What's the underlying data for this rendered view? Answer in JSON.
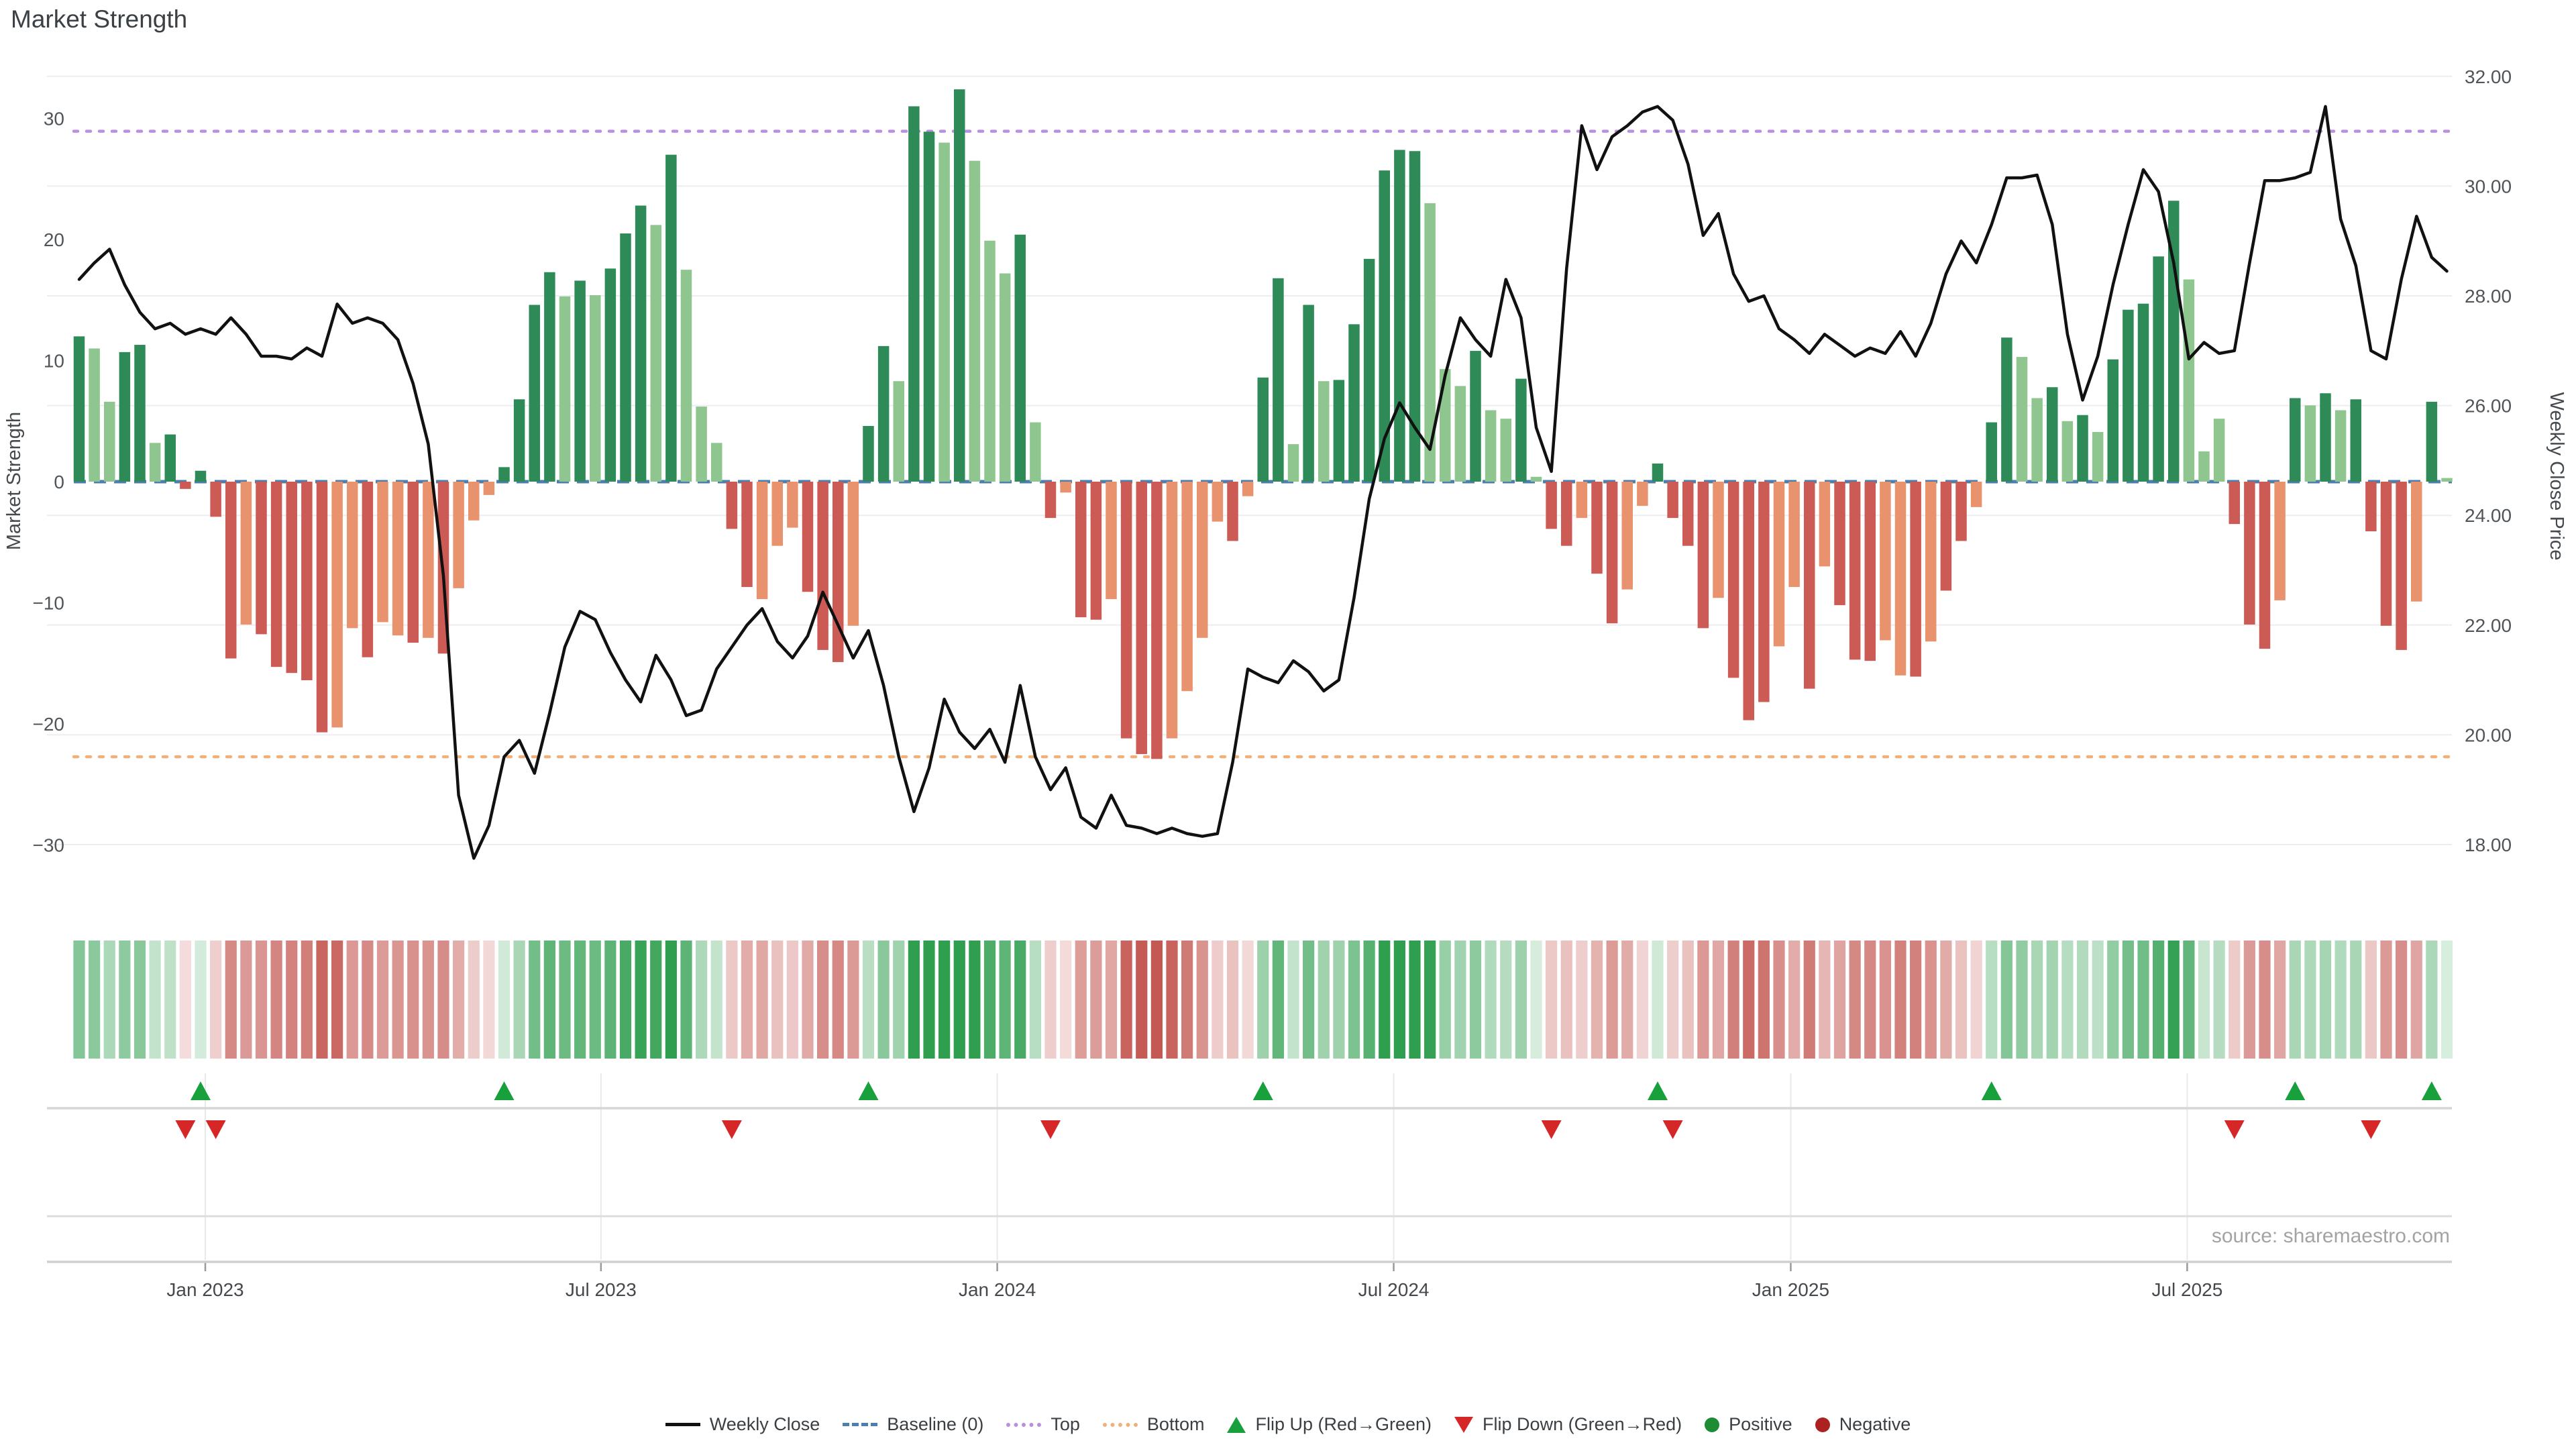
{
  "title": "Market Strength",
  "source": "source: sharemaestro.com",
  "axes": {
    "left": {
      "title": "Market Strength",
      "tick_labels": [
        "30",
        "20",
        "10",
        "0",
        "−10",
        "−20",
        "−30"
      ],
      "tick_values": [
        30,
        20,
        10,
        0,
        -10,
        -20,
        -30
      ]
    },
    "right": {
      "title": "Weekly Close Price",
      "tick_labels": [
        "32.00",
        "30.00",
        "28.00",
        "26.00",
        "24.00",
        "22.00",
        "20.00",
        "18.00"
      ],
      "tick_values": [
        32,
        30,
        28,
        26,
        24,
        22,
        20,
        18
      ]
    },
    "x": {
      "tick_labels": [
        "Jan 2023",
        "Jul 2023",
        "Jan 2024",
        "Jul 2024",
        "Jan 2025",
        "Jul 2025"
      ],
      "tick_weeks": [
        8.31,
        34.38,
        60.49,
        86.61,
        112.77,
        138.89
      ]
    }
  },
  "thresholds": {
    "top": {
      "label": "Top",
      "price": 31.0,
      "color": "#b98fe0"
    },
    "bottom": {
      "label": "Bottom",
      "price": 19.6,
      "color": "#f0b07a"
    },
    "baseline": {
      "label": "Baseline (0)",
      "value": 0,
      "color": "#4c7fae"
    }
  },
  "legend": {
    "items": [
      {
        "label": "Weekly Close",
        "marker": "line"
      },
      {
        "label": "Baseline (0)",
        "marker": "dash"
      },
      {
        "label": "Top",
        "marker": "dot-purple"
      },
      {
        "label": "Bottom",
        "marker": "dot-orange"
      },
      {
        "label": "Flip Up (Red→Green)",
        "marker": "tri-up"
      },
      {
        "label": "Flip Down (Green→Red)",
        "marker": "tri-down"
      },
      {
        "label": "Positive",
        "marker": "dot-green"
      },
      {
        "label": "Negative",
        "marker": "dot-red"
      }
    ]
  },
  "colors": {
    "pos_dark": "#2e8b57",
    "pos_light": "#8fc68f",
    "neg_dark": "#cd5b55",
    "neg_light": "#e9936e",
    "price_line": "#111111",
    "grid": "#ededf1",
    "flip_up": "#17a03c",
    "flip_down": "#d62728",
    "axis_text": "#50555a",
    "panel_line": "#d6d6d6",
    "heat_pos_base": "#2f9e4f",
    "heat_neg_base": "#c2524c"
  },
  "chart_data": {
    "type": "bar",
    "title": "Market Strength",
    "x_unit": "week (Nov 2022 – Nov 2025)",
    "ylabel_left": "Market Strength",
    "ylabel_right": "Weekly Close Price",
    "ylim_left": [
      -35,
      35
    ],
    "ylim_right": [
      16.9,
      32.4
    ],
    "grid": true,
    "legend_position": "bottom-center",
    "series": [
      {
        "name": "Market Strength bars",
        "type": "bar",
        "values": [
          12.0,
          11.0,
          6.6,
          10.7,
          11.3,
          3.2,
          3.9,
          -0.6,
          0.9,
          -2.9,
          -14.6,
          -11.8,
          -12.6,
          -15.3,
          -15.8,
          -16.4,
          -20.7,
          -20.3,
          -12.1,
          -14.5,
          -11.6,
          -12.7,
          -13.3,
          -12.9,
          -14.2,
          -8.8,
          -3.2,
          -1.1,
          1.2,
          6.8,
          14.6,
          17.3,
          15.3,
          16.6,
          15.4,
          17.6,
          20.5,
          22.8,
          21.2,
          27.0,
          17.5,
          6.2,
          3.2,
          -3.9,
          -8.7,
          -9.7,
          -5.3,
          -3.8,
          -9.1,
          -13.9,
          -14.9,
          -11.9,
          4.6,
          11.2,
          8.3,
          31.0,
          28.9,
          28.0,
          32.4,
          26.5,
          19.9,
          17.2,
          20.4,
          4.9,
          -3.0,
          -0.9,
          -11.2,
          -11.4,
          -9.7,
          -21.2,
          -22.5,
          -22.9,
          -21.2,
          -17.3,
          -12.9,
          -3.3,
          -4.9,
          -1.2,
          8.6,
          16.8,
          3.1,
          14.6,
          8.3,
          8.4,
          13.0,
          18.4,
          25.7,
          27.4,
          27.3,
          23.0,
          9.3,
          7.9,
          10.8,
          5.9,
          5.2,
          8.5,
          0.4,
          -3.9,
          -5.3,
          -3.0,
          -7.6,
          -11.7,
          -8.9,
          -2.0,
          1.5,
          -3.0,
          -5.3,
          -12.1,
          -9.6,
          -16.2,
          -19.7,
          -18.2,
          -13.6,
          -8.7,
          -17.1,
          -7.0,
          -10.2,
          -14.7,
          -14.8,
          -13.1,
          -16.0,
          -16.1,
          -13.2,
          -9.0,
          -4.9,
          -2.1,
          4.9,
          11.9,
          10.3,
          6.9,
          7.8,
          5.0,
          5.5,
          4.1,
          10.1,
          14.2,
          14.7,
          18.6,
          23.2,
          16.7,
          2.5,
          5.2,
          -3.5,
          -11.8,
          -13.8,
          -9.8,
          6.9,
          6.3,
          7.3,
          5.9,
          6.8,
          -4.1,
          -11.9,
          -13.9,
          -9.9,
          6.6,
          0.3
        ],
        "dark": [
          1,
          0,
          0,
          1,
          1,
          0,
          1,
          1,
          1,
          1,
          1,
          0,
          1,
          1,
          1,
          1,
          1,
          0,
          0,
          1,
          0,
          0,
          1,
          0,
          1,
          0,
          0,
          0,
          1,
          1,
          1,
          1,
          0,
          1,
          0,
          1,
          1,
          1,
          0,
          1,
          0,
          0,
          0,
          1,
          1,
          0,
          0,
          0,
          1,
          1,
          1,
          0,
          1,
          1,
          0,
          1,
          1,
          0,
          1,
          0,
          0,
          0,
          1,
          0,
          1,
          0,
          1,
          1,
          0,
          1,
          1,
          1,
          0,
          0,
          0,
          0,
          1,
          0,
          1,
          1,
          0,
          1,
          0,
          1,
          1,
          1,
          1,
          1,
          1,
          0,
          0,
          0,
          1,
          0,
          0,
          1,
          0,
          1,
          1,
          0,
          1,
          1,
          0,
          0,
          1,
          1,
          1,
          1,
          0,
          1,
          1,
          1,
          0,
          0,
          1,
          0,
          1,
          1,
          1,
          0,
          0,
          1,
          0,
          1,
          1,
          0,
          1,
          1,
          0,
          0,
          1,
          0,
          1,
          0,
          1,
          1,
          1,
          1,
          1,
          0,
          0,
          0,
          1,
          1,
          1,
          0,
          1,
          0,
          1,
          0,
          1,
          1,
          1,
          1,
          0,
          1,
          0
        ]
      },
      {
        "name": "Weekly Close",
        "type": "line",
        "values": [
          28.3,
          28.6,
          28.85,
          28.2,
          27.7,
          27.4,
          27.5,
          27.3,
          27.4,
          27.3,
          27.6,
          27.3,
          26.9,
          26.9,
          26.85,
          27.05,
          26.9,
          27.85,
          27.5,
          27.6,
          27.5,
          27.2,
          26.4,
          25.3,
          22.9,
          18.9,
          17.75,
          18.35,
          19.6,
          19.9,
          19.3,
          20.4,
          21.6,
          22.25,
          22.1,
          21.5,
          21.0,
          20.6,
          21.45,
          21.0,
          20.35,
          20.45,
          21.2,
          21.6,
          22.0,
          22.3,
          21.7,
          21.4,
          21.8,
          22.6,
          22.0,
          21.4,
          21.9,
          20.9,
          19.6,
          18.6,
          19.4,
          20.65,
          20.05,
          19.75,
          20.1,
          19.5,
          20.9,
          19.6,
          19.0,
          19.4,
          18.5,
          18.3,
          18.9,
          18.35,
          18.3,
          18.2,
          18.3,
          18.2,
          18.15,
          18.2,
          19.5,
          21.2,
          21.05,
          20.95,
          21.35,
          21.15,
          20.8,
          21.0,
          22.5,
          24.3,
          25.4,
          26.05,
          25.6,
          25.2,
          26.55,
          27.6,
          27.2,
          26.9,
          28.3,
          27.6,
          25.6,
          24.8,
          28.5,
          31.1,
          30.3,
          30.9,
          31.1,
          31.35,
          31.45,
          31.2,
          30.4,
          29.1,
          29.5,
          28.4,
          27.9,
          28.0,
          27.4,
          27.2,
          26.95,
          27.3,
          27.1,
          26.9,
          27.05,
          26.95,
          27.35,
          26.9,
          27.5,
          28.4,
          29.0,
          28.6,
          29.3,
          30.15,
          30.15,
          30.2,
          29.3,
          27.3,
          26.1,
          26.9,
          28.2,
          29.3,
          30.3,
          29.9,
          28.6,
          26.85,
          27.15,
          26.95,
          27.0,
          28.6,
          30.1,
          30.1,
          30.15,
          30.25,
          31.45,
          29.4,
          28.55,
          27.0,
          26.85,
          28.3,
          29.45,
          28.7,
          28.45
        ]
      }
    ],
    "flip_up_weeks": [
      8,
      28,
      52,
      78,
      104,
      126,
      146,
      155
    ],
    "flip_down_weeks": [
      7,
      9,
      43,
      64,
      97,
      105,
      142,
      151
    ],
    "heatmap": "per-week strip colored by bar sign and magnitude"
  }
}
